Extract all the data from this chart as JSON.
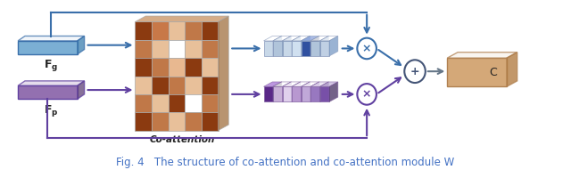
{
  "fig_width": 6.4,
  "fig_height": 1.91,
  "dpi": 100,
  "bg_color": "#ffffff",
  "blue": "#7bafd4",
  "blue_dark": "#3a6faa",
  "blue_light": "#aec6e0",
  "purple": "#9370b0",
  "purple_dark": "#6040a0",
  "purple_light": "#c0a8d8",
  "orange": "#d4a878",
  "orange_dark": "#b08050",
  "gray_edge": "#888888",
  "grid_colors": [
    [
      "#8b3a10",
      "#c87848",
      "#e8c09a",
      "#c07848",
      "#8b3a10"
    ],
    [
      "#c07848",
      "#e8c09a",
      "#ffffff",
      "#e8c09a",
      "#c07848"
    ],
    [
      "#8b3a10",
      "#c07848",
      "#e8b890",
      "#8b3a10",
      "#e8c09a"
    ],
    [
      "#e8c09a",
      "#8b3a10",
      "#c07848",
      "#e8c09a",
      "#8b3a10"
    ],
    [
      "#c07848",
      "#e8c09a",
      "#8b3a10",
      "#ffffff",
      "#c07848"
    ],
    [
      "#8b3a10",
      "#c07848",
      "#e8c09a",
      "#c07848",
      "#8b3a10"
    ]
  ],
  "blue_bar_colors": [
    "#c8d8e8",
    "#b0c4da",
    "#c8d8e8",
    "#d0e0f0",
    "#3050a0",
    "#b0c4da",
    "#c0d0e4"
  ],
  "purple_bar_colors": [
    "#5a2888",
    "#c8b0d8",
    "#e0d0ec",
    "#b898d0",
    "#c0a8d8",
    "#9878c0",
    "#7850a8"
  ],
  "caption_text": "Fig. 4   The structure of co-attention and co-attention module W",
  "caption_color": "#4472c4",
  "caption_fontsize": 8.5
}
